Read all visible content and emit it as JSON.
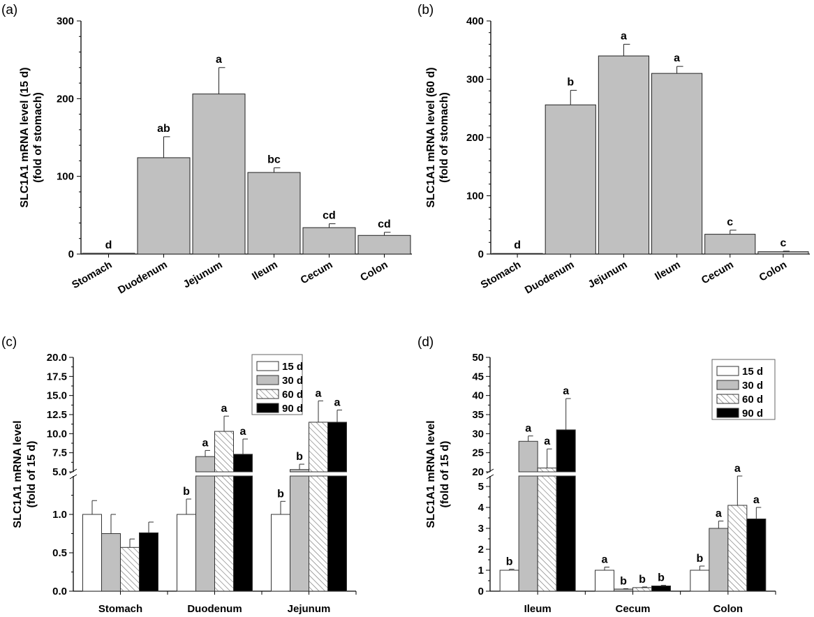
{
  "chart_data": [
    {
      "panel_label": "(a)",
      "type": "bar",
      "ylabel": [
        "SLC1A1 mRNA level (15 d)",
        "(fold of stomach)"
      ],
      "ylim": [
        0,
        300
      ],
      "yticks": [
        0,
        100,
        200,
        300
      ],
      "grid": false,
      "categories": [
        "Stomach",
        "Duodenum",
        "Jejunum",
        "Ileum",
        "Cecum",
        "Colon"
      ],
      "values": [
        1,
        124,
        206,
        105,
        34,
        24
      ],
      "errors": [
        0,
        27,
        34,
        6,
        5,
        4
      ],
      "letters": [
        "d",
        "ab",
        "a",
        "bc",
        "cd",
        "cd"
      ],
      "bar_color": "#c0c0c0"
    },
    {
      "panel_label": "(b)",
      "type": "bar",
      "ylabel": [
        "SLC1A1 mRNA level (60 d)",
        "(fold of stomach)"
      ],
      "ylim": [
        0,
        400
      ],
      "yticks": [
        0,
        100,
        200,
        300,
        400
      ],
      "grid": false,
      "categories": [
        "Stomach",
        "Duodenum",
        "Jejunum",
        "Ileum",
        "Cecum",
        "Colon"
      ],
      "values": [
        1,
        256,
        340,
        310,
        34,
        4
      ],
      "errors": [
        0,
        25,
        20,
        12,
        7,
        1
      ],
      "letters": [
        "d",
        "b",
        "a",
        "a",
        "c",
        "c"
      ],
      "bar_color": "#c0c0c0"
    },
    {
      "panel_label": "(c)",
      "type": "bar",
      "ylabel": [
        "SLC1A1 mRNA level",
        "(fold of 15 d)"
      ],
      "axis_break": {
        "lower": [
          0,
          1.5
        ],
        "upper": [
          5,
          20
        ]
      },
      "yticks_lower": [
        "0.0",
        "0.5",
        "1.0"
      ],
      "yticks_upper": [
        "5.0",
        "7.5",
        "10.0",
        "12.5",
        "15.0",
        "17.5",
        "20.0"
      ],
      "grid": false,
      "legend_position": "top-right",
      "categories": [
        "Stomach",
        "Duodenum",
        "Jejunum"
      ],
      "series": [
        {
          "name": "15 d",
          "values": [
            1.0,
            1.0,
            1.0
          ],
          "errors": [
            0.18,
            0.2,
            0.17
          ],
          "letters": [
            "",
            "b",
            "b"
          ],
          "fill": "white"
        },
        {
          "name": "30 d",
          "values": [
            0.75,
            7.0,
            5.3
          ],
          "errors": [
            0.25,
            0.8,
            0.7
          ],
          "letters": [
            "",
            "a",
            "b"
          ],
          "fill": "gray"
        },
        {
          "name": "60 d",
          "values": [
            0.57,
            10.3,
            11.5
          ],
          "errors": [
            0.11,
            2.0,
            2.8
          ],
          "letters": [
            "",
            "a",
            "a"
          ],
          "fill": "hatched"
        },
        {
          "name": "90 d",
          "values": [
            0.76,
            7.3,
            11.5
          ],
          "errors": [
            0.14,
            2.0,
            1.6
          ],
          "letters": [
            "",
            "a",
            "a"
          ],
          "fill": "black"
        }
      ]
    },
    {
      "panel_label": "(d)",
      "type": "bar",
      "ylabel": [
        "SLC1A1 mRNA level",
        "(fold of 15 d)"
      ],
      "axis_break": {
        "lower": [
          0,
          5.5
        ],
        "upper": [
          20,
          50
        ]
      },
      "yticks_lower": [
        "0",
        "1",
        "2",
        "3",
        "4",
        "5"
      ],
      "yticks_upper": [
        "20",
        "25",
        "30",
        "35",
        "40",
        "45",
        "50"
      ],
      "grid": false,
      "legend_position": "top-right",
      "categories": [
        "Ileum",
        "Cecum",
        "Colon"
      ],
      "series": [
        {
          "name": "15 d",
          "values": [
            1.0,
            1.0,
            1.0
          ],
          "errors": [
            0.05,
            0.15,
            0.2
          ],
          "letters": [
            "b",
            "a",
            "b"
          ],
          "fill": "white"
        },
        {
          "name": "30 d",
          "values": [
            28,
            0.1,
            3.0
          ],
          "errors": [
            1.4,
            0.02,
            0.35
          ],
          "letters": [
            "a",
            "b",
            "a"
          ],
          "fill": "gray"
        },
        {
          "name": "60 d",
          "values": [
            21,
            0.17,
            4.1
          ],
          "errors": [
            5,
            0.03,
            1.4
          ],
          "letters": [
            "a",
            "b",
            "a"
          ],
          "fill": "hatched"
        },
        {
          "name": "90 d",
          "values": [
            31,
            0.25,
            3.45
          ],
          "errors": [
            8.2,
            0.03,
            0.55
          ],
          "letters": [
            "a",
            "b",
            "a"
          ],
          "fill": "black"
        }
      ]
    }
  ],
  "colors": {
    "gray_bar": "#c0c0c0",
    "black_bar": "#000000",
    "white_bar": "#ffffff"
  }
}
